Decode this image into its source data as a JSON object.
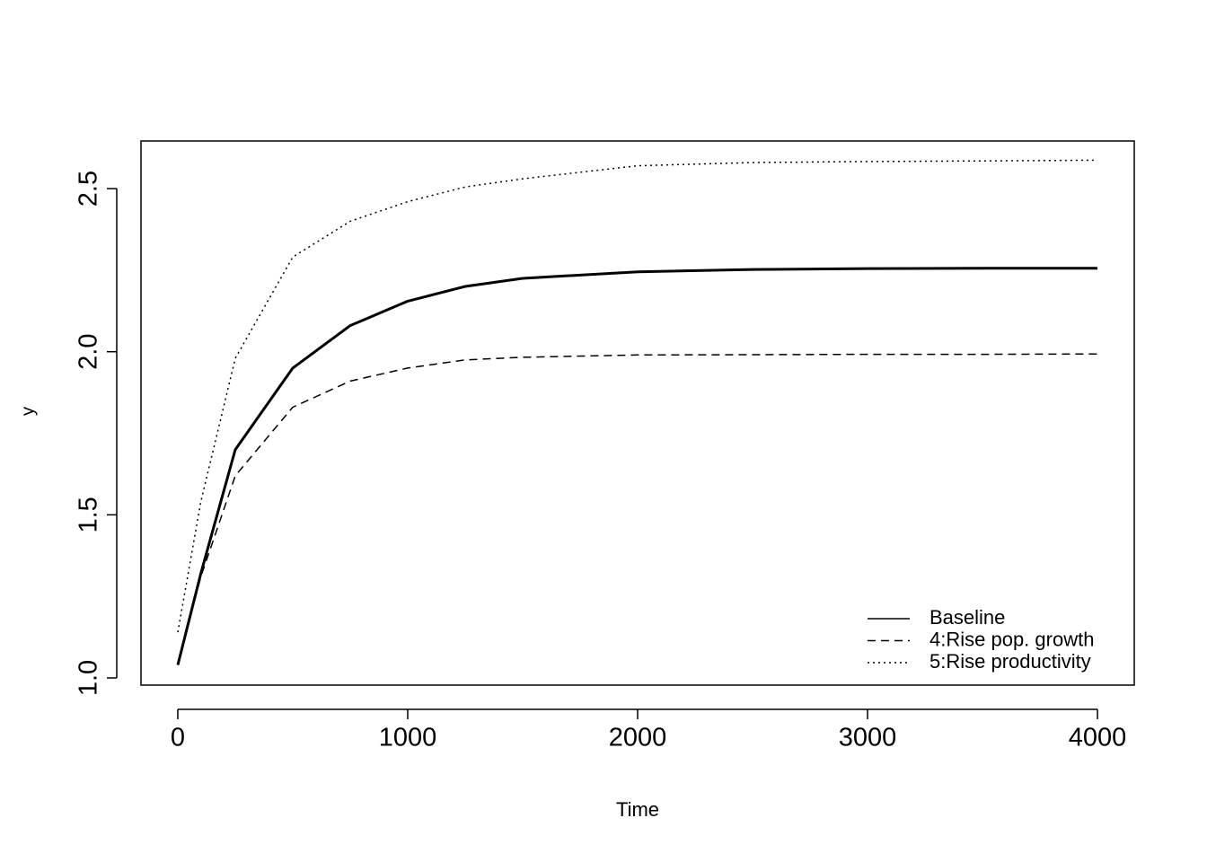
{
  "chart_data": {
    "type": "line",
    "xlabel": "Time",
    "ylabel": "y",
    "x": [
      0,
      100,
      250,
      500,
      750,
      1000,
      1250,
      1500,
      2000,
      2500,
      3000,
      3500,
      4000
    ],
    "series": [
      {
        "name": "Baseline",
        "color": "#000000",
        "linestyle": "solid",
        "linewidth": 3,
        "values": [
          1.04,
          1.32,
          1.7,
          1.95,
          2.08,
          2.155,
          2.2,
          2.225,
          2.245,
          2.252,
          2.255,
          2.256,
          2.256
        ]
      },
      {
        "name": "4:Rise pop. growth",
        "color": "#000000",
        "linestyle": "dashed",
        "linewidth": 1.5,
        "values": [
          1.04,
          1.31,
          1.62,
          1.83,
          1.91,
          1.95,
          1.975,
          1.983,
          1.99,
          1.991,
          1.992,
          1.992,
          1.993
        ]
      },
      {
        "name": "5:Rise productivity",
        "color": "#000000",
        "linestyle": "dotted",
        "linewidth": 1.5,
        "values": [
          1.14,
          1.54,
          1.98,
          2.29,
          2.4,
          2.46,
          2.505,
          2.53,
          2.57,
          2.58,
          2.583,
          2.585,
          2.587
        ]
      }
    ],
    "xlim": [
      -160,
      4160
    ],
    "ylim": [
      0.978,
      2.646
    ],
    "xticks": [
      0,
      1000,
      2000,
      3000,
      4000
    ],
    "yticks": [
      {
        "value": 1,
        "label": "1.0"
      },
      1.5,
      {
        "value": 2,
        "label": "2.0"
      },
      2.5
    ],
    "legend": "bottom-right"
  }
}
